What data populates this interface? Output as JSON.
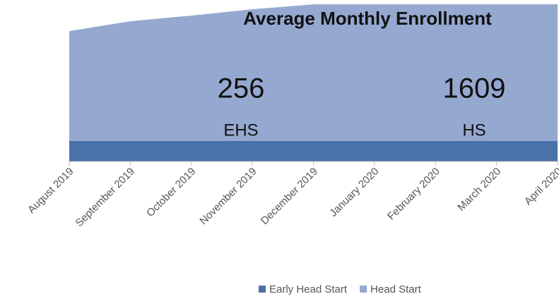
{
  "chart_data": {
    "type": "stacked_area",
    "title": "Average Monthly Enrollment",
    "annotations": [
      "256",
      "EHS",
      "1609",
      "HS"
    ],
    "categories": [
      "August 2019",
      "September 2019",
      "October 2019",
      "November 2019",
      "December 2019",
      "January 2020",
      "February 2020",
      "March 2020",
      "April 2020"
    ],
    "series": [
      {
        "name": "Early Head Start",
        "color": "#4a72a8",
        "values": [
          256,
          256,
          256,
          256,
          256,
          256,
          256,
          256,
          256
        ]
      },
      {
        "name": "Head Start",
        "color": "#95a9d0",
        "values": [
          1377,
          1501,
          1572,
          1651,
          1713,
          1713,
          1713,
          1713,
          1713
        ]
      }
    ],
    "ylim": [
      0,
      1970
    ],
    "legend": "bottom"
  }
}
